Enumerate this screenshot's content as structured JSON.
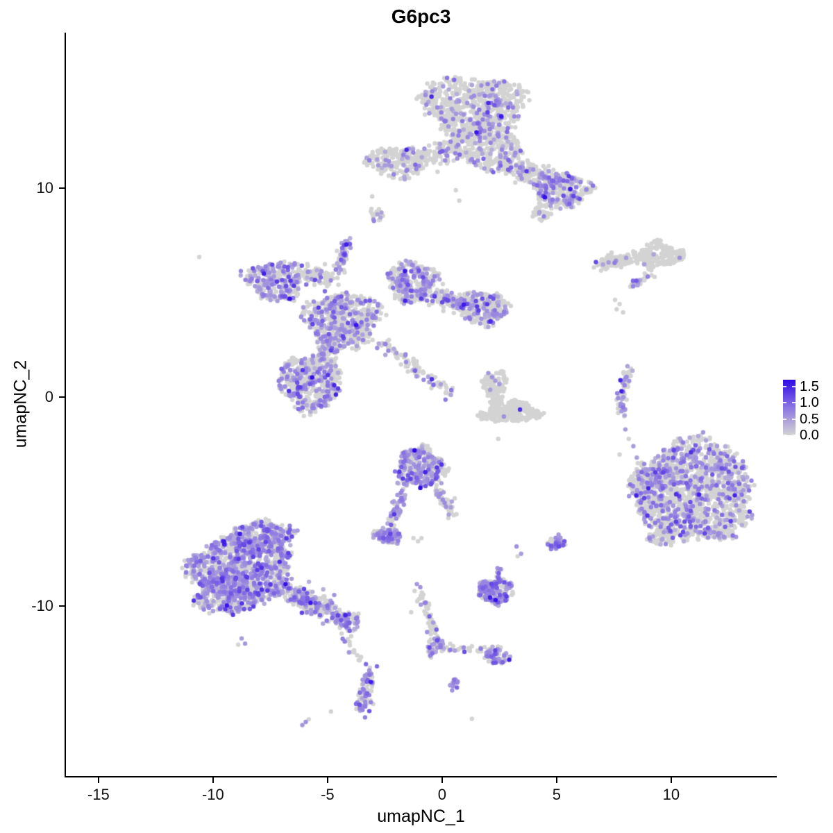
{
  "chart_data": {
    "type": "scatter",
    "title": "G6pc3",
    "xlabel": "umapNC_1",
    "ylabel": "umapNC_2",
    "grid": false,
    "background": "#ffffff",
    "xlim": [
      -16.42,
      14.58
    ],
    "ylim": [
      -18.14,
      17.44
    ],
    "x_ticks": [
      {
        "v": -15,
        "label": "-15"
      },
      {
        "v": -10,
        "label": "-10"
      },
      {
        "v": -5,
        "label": "-5"
      },
      {
        "v": 0,
        "label": "0"
      },
      {
        "v": 5,
        "label": "5"
      },
      {
        "v": 10,
        "label": "10"
      }
    ],
    "y_ticks": [
      {
        "v": 10,
        "label": "10"
      },
      {
        "v": 0,
        "label": "0"
      },
      {
        "v": -10,
        "label": "-10"
      }
    ],
    "legend": {
      "position": "right",
      "vmax": 1.71,
      "ticks": [
        {
          "v": 1.5,
          "label": "1.5"
        },
        {
          "v": 1.0,
          "label": "1.0"
        },
        {
          "v": 0.5,
          "label": "0.5"
        },
        {
          "v": 0.0,
          "label": "0.0"
        }
      ]
    },
    "colors": {
      "low": "#D3D3D3",
      "mid": "#8C76E3",
      "high": "#2F0AE8"
    },
    "point_radius": 3.2,
    "seed": 1234,
    "clusters": [
      {
        "t": "b",
        "cx": 1.3,
        "cy": 14.0,
        "rx": 2.3,
        "ry": 1.35,
        "n": 620,
        "f": 0.17,
        "w": 0.18
      },
      {
        "t": "b",
        "cx": 1.9,
        "cy": 12.1,
        "rx": 1.55,
        "ry": 1.25,
        "n": 380,
        "f": 0.17,
        "w": 0.2
      },
      {
        "t": "s",
        "x1": 2.7,
        "y1": 11.3,
        "x2": 4.7,
        "y2": 10.4,
        "wd": 0.55,
        "n": 170,
        "f": 0.2
      },
      {
        "t": "b",
        "cx": 5.2,
        "cy": 9.9,
        "rx": 1.25,
        "ry": 0.85,
        "n": 300,
        "f": 0.28,
        "w": 0.2
      },
      {
        "t": "b",
        "cx": 4.35,
        "cy": 8.75,
        "rx": 0.45,
        "ry": 0.28,
        "n": 26,
        "f": 0.12,
        "w": 0.3
      },
      {
        "t": "b",
        "cx": -1.9,
        "cy": 11.25,
        "rx": 1.35,
        "ry": 0.75,
        "n": 210,
        "f": 0.18,
        "w": 0.25
      },
      {
        "t": "s",
        "x1": -0.6,
        "y1": 11.4,
        "x2": 0.6,
        "y2": 12.1,
        "wd": 0.5,
        "n": 90,
        "f": 0.15
      },
      {
        "t": "b",
        "cx": -2.85,
        "cy": 8.7,
        "rx": 0.3,
        "ry": 0.35,
        "n": 18,
        "f": 0.25,
        "w": 0.3
      },
      {
        "t": "b",
        "cx": -7.25,
        "cy": 5.6,
        "rx": 1.25,
        "ry": 0.95,
        "n": 280,
        "f": 0.45,
        "w": 0.25
      },
      {
        "t": "s",
        "x1": -6.1,
        "y1": 5.9,
        "x2": -4.9,
        "y2": 5.6,
        "wd": 0.5,
        "n": 90,
        "f": 0.12
      },
      {
        "t": "b",
        "cx": -4.3,
        "cy": 3.7,
        "rx": 1.65,
        "ry": 1.3,
        "n": 520,
        "f": 0.32,
        "w": 0.2
      },
      {
        "t": "s",
        "x1": -4.55,
        "y1": 6.1,
        "x2": -4.05,
        "y2": 7.55,
        "wd": 0.28,
        "n": 55,
        "f": 0.55
      },
      {
        "t": "b",
        "cx": -1.35,
        "cy": 5.5,
        "rx": 1.05,
        "ry": 1.0,
        "n": 280,
        "f": 0.38,
        "w": 0.2
      },
      {
        "t": "s",
        "x1": -0.4,
        "y1": 4.9,
        "x2": 1.2,
        "y2": 4.35,
        "wd": 0.5,
        "n": 160,
        "f": 0.28
      },
      {
        "t": "b",
        "cx": 1.85,
        "cy": 4.25,
        "rx": 1.05,
        "ry": 0.8,
        "n": 240,
        "f": 0.3,
        "w": 0.2
      },
      {
        "t": "b",
        "cx": -5.75,
        "cy": 0.7,
        "rx": 1.35,
        "ry": 1.3,
        "n": 430,
        "f": 0.33,
        "w": 0.18
      },
      {
        "t": "s",
        "x1": -5.3,
        "y1": 1.9,
        "x2": -4.6,
        "y2": 2.9,
        "wd": 0.55,
        "n": 130,
        "f": 0.3
      },
      {
        "t": "s",
        "x1": -2.7,
        "y1": 2.7,
        "x2": 0.35,
        "y2": 0.2,
        "wd": 0.3,
        "n": 95,
        "f": 0.32
      },
      {
        "t": "b",
        "cx": 2.3,
        "cy": 0.55,
        "rx": 0.55,
        "ry": 0.75,
        "n": 110,
        "f": 0.0,
        "w": 0.25
      },
      {
        "t": "b",
        "cx": 2.95,
        "cy": -0.7,
        "rx": 1.25,
        "ry": 0.52,
        "n": 240,
        "f": 0.01,
        "w": 0.25
      },
      {
        "t": "b",
        "cx": -0.95,
        "cy": -3.35,
        "rx": 1.05,
        "ry": 0.95,
        "n": 300,
        "f": 0.42,
        "w": 0.22
      },
      {
        "t": "s",
        "x1": -1.7,
        "y1": -4.5,
        "x2": -2.3,
        "y2": -6.1,
        "wd": 0.3,
        "n": 60,
        "f": 0.5
      },
      {
        "t": "b",
        "cx": -2.4,
        "cy": -6.65,
        "rx": 0.62,
        "ry": 0.38,
        "n": 110,
        "f": 0.6,
        "w": 0.2
      },
      {
        "t": "s",
        "x1": -0.25,
        "y1": -4.4,
        "x2": 0.45,
        "y2": -5.6,
        "wd": 0.3,
        "n": 55,
        "f": 0.25
      },
      {
        "t": "b",
        "cx": 4.95,
        "cy": -6.95,
        "rx": 0.42,
        "ry": 0.33,
        "n": 40,
        "f": 0.7,
        "w": 0.3
      },
      {
        "t": "b",
        "cx": -8.7,
        "cy": -8.2,
        "rx": 2.3,
        "ry": 1.6,
        "n": 950,
        "f": 0.5,
        "w": 0.15
      },
      {
        "t": "b",
        "cx": -9.35,
        "cy": -9.3,
        "rx": 1.45,
        "ry": 1.1,
        "n": 360,
        "f": 0.5,
        "w": 0.18
      },
      {
        "t": "b",
        "cx": -7.8,
        "cy": -6.7,
        "rx": 1.25,
        "ry": 0.8,
        "n": 260,
        "f": 0.45,
        "w": 0.2
      },
      {
        "t": "s",
        "x1": -6.5,
        "y1": -9.4,
        "x2": -4.35,
        "y2": -10.6,
        "wd": 0.55,
        "n": 260,
        "f": 0.45
      },
      {
        "t": "b",
        "cx": -4.05,
        "cy": -10.75,
        "rx": 0.5,
        "ry": 0.4,
        "n": 60,
        "f": 0.5,
        "w": 0.25
      },
      {
        "t": "s",
        "x1": -4.3,
        "y1": -11.3,
        "x2": -3.6,
        "y2": -12.5,
        "wd": 0.25,
        "n": 16,
        "f": 0.25
      },
      {
        "t": "s",
        "x1": -0.95,
        "y1": -9.3,
        "x2": -0.35,
        "y2": -11.2,
        "wd": 0.22,
        "n": 40,
        "f": 0.2
      },
      {
        "t": "b",
        "cx": -0.3,
        "cy": -11.9,
        "rx": 0.38,
        "ry": 0.55,
        "n": 45,
        "f": 0.5,
        "w": 0.25
      },
      {
        "t": "s",
        "x1": 0.1,
        "y1": -12.0,
        "x2": 1.8,
        "y2": -12.1,
        "wd": 0.22,
        "n": 30,
        "f": 0.1
      },
      {
        "t": "b",
        "cx": 2.35,
        "cy": -12.4,
        "rx": 0.55,
        "ry": 0.42,
        "n": 65,
        "f": 0.55,
        "w": 0.25
      },
      {
        "t": "b",
        "cx": 0.55,
        "cy": -13.75,
        "rx": 0.24,
        "ry": 0.3,
        "n": 12,
        "f": 0.85,
        "w": 0.2
      },
      {
        "t": "s",
        "x1": -3.15,
        "y1": -13.0,
        "x2": -3.5,
        "y2": -15.1,
        "wd": 0.32,
        "n": 80,
        "f": 0.55
      },
      {
        "t": "b",
        "cx": 2.35,
        "cy": -9.3,
        "rx": 0.8,
        "ry": 0.58,
        "n": 175,
        "f": 0.62,
        "w": 0.2
      },
      {
        "t": "s",
        "x1": 2.4,
        "y1": -8.75,
        "x2": 2.55,
        "y2": -8.2,
        "wd": 0.2,
        "n": 14,
        "f": 0.5
      },
      {
        "t": "s",
        "x1": 6.9,
        "y1": 6.35,
        "x2": 8.3,
        "y2": 6.6,
        "wd": 0.42,
        "n": 115,
        "f": 0.05
      },
      {
        "t": "b",
        "cx": 9.55,
        "cy": 6.8,
        "rx": 0.95,
        "ry": 0.6,
        "n": 170,
        "f": 0.04,
        "w": 0.3
      },
      {
        "t": "s",
        "x1": 8.35,
        "y1": 6.55,
        "x2": 8.95,
        "y2": 6.7,
        "wd": 0.3,
        "n": 30,
        "f": 0.0
      },
      {
        "t": "s",
        "x1": 8.25,
        "y1": 5.3,
        "x2": 8.95,
        "y2": 5.85,
        "wd": 0.26,
        "n": 30,
        "f": 0.35
      },
      {
        "t": "s",
        "x1": 8.2,
        "y1": 1.4,
        "x2": 7.9,
        "y2": -0.85,
        "cx": 7.72,
        "cy": 0.3,
        "wd": 0.22,
        "n": 65,
        "f": 0.35
      },
      {
        "t": "b",
        "cx": 11.0,
        "cy": -4.5,
        "rx": 2.55,
        "ry": 2.45,
        "n": 1500,
        "f": 0.26,
        "w": 0.12
      },
      {
        "t": "b",
        "cx": 9.0,
        "cy": -4.3,
        "rx": 0.75,
        "ry": 1.35,
        "n": 180,
        "f": 0.3,
        "w": 0.3
      },
      {
        "t": "b",
        "cx": 9.6,
        "cy": -6.7,
        "rx": 0.55,
        "ry": 0.45,
        "n": 60,
        "f": 0.3,
        "w": 0.25
      }
    ],
    "extra_points": [
      [
        -3.05,
        9.6,
        0
      ],
      [
        0.6,
        9.9,
        0
      ],
      [
        0.75,
        9.4,
        0
      ],
      [
        -10.6,
        6.7,
        0
      ],
      [
        2.02,
        1.15,
        0.55
      ],
      [
        2.18,
        0.95,
        0.6
      ],
      [
        2.32,
        0.78,
        0.5
      ],
      [
        2.5,
        0.62,
        0.55
      ],
      [
        2.1,
        0.35,
        0.5
      ],
      [
        3.4,
        -0.6,
        1.4
      ],
      [
        2.45,
        -2.0,
        0
      ],
      [
        -1.2,
        -2.55,
        1.75
      ],
      [
        -0.95,
        -4.35,
        1.75
      ],
      [
        -1.25,
        -6.75,
        0
      ],
      [
        -1.05,
        -6.9,
        0
      ],
      [
        -0.9,
        -6.75,
        0
      ],
      [
        3.25,
        -7.15,
        0.6
      ],
      [
        3.45,
        -7.5,
        0.5
      ],
      [
        3.3,
        -7.62,
        0
      ],
      [
        5.1,
        -7.15,
        1.2
      ],
      [
        -8.75,
        -11.55,
        0.5
      ],
      [
        -8.6,
        -11.8,
        0.55
      ],
      [
        -8.9,
        -11.85,
        0
      ],
      [
        -1.1,
        -8.95,
        0.55
      ],
      [
        -0.95,
        -9.1,
        0.6
      ],
      [
        -1.2,
        -9.28,
        0
      ],
      [
        -1.35,
        -10.3,
        0
      ],
      [
        2.3,
        -12.3,
        1.1
      ],
      [
        -3.6,
        -12.6,
        0
      ],
      [
        -4.85,
        -15.05,
        0
      ],
      [
        1.3,
        -15.4,
        0
      ],
      [
        -5.95,
        -15.55,
        0.6
      ],
      [
        -6.1,
        -15.7,
        0.55
      ],
      [
        -5.82,
        -15.42,
        0
      ],
      [
        7.55,
        4.65,
        0
      ],
      [
        7.75,
        4.45,
        0
      ],
      [
        7.62,
        4.2,
        0
      ],
      [
        7.9,
        4.05,
        0
      ],
      [
        8.0,
        -1.55,
        0.5
      ],
      [
        8.15,
        -2.0,
        0
      ],
      [
        8.35,
        -2.35,
        0.5
      ],
      [
        7.75,
        -2.75,
        0
      ],
      [
        8.5,
        -2.9,
        0.45
      ]
    ]
  }
}
